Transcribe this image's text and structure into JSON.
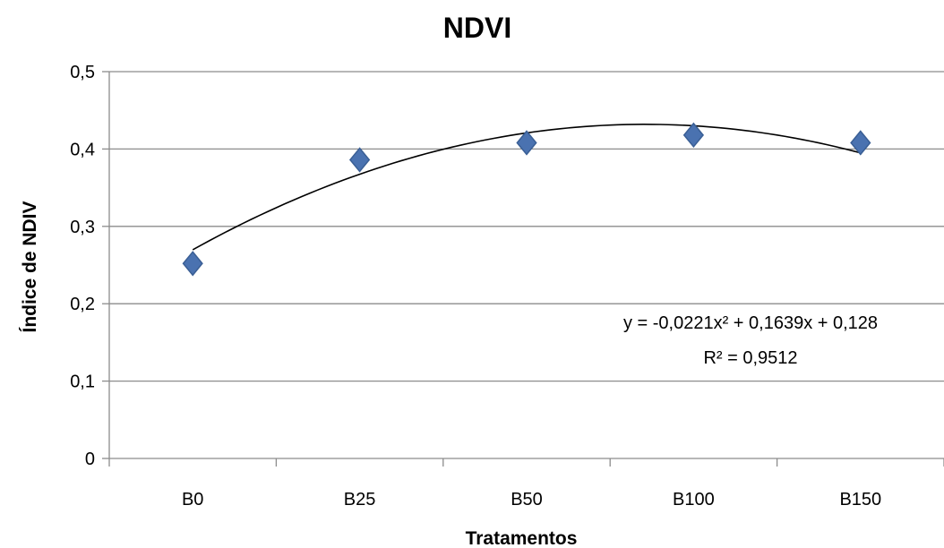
{
  "chart_data": {
    "type": "scatter",
    "title": "NDVI",
    "xlabel": "Tratamentos",
    "ylabel": "Índice de NDIV",
    "categories": [
      "B0",
      "B25",
      "B50",
      "B100",
      "B150"
    ],
    "series": [
      {
        "values": [
          0.252,
          0.386,
          0.408,
          0.418,
          0.408
        ],
        "marker": "diamond",
        "color": "#4A72B0"
      }
    ],
    "trendline": {
      "type": "polynomial",
      "order": 2,
      "coefficients": {
        "a": -0.0221,
        "b": 0.1639,
        "c": 0.128
      },
      "equation_label": "y = -0,0221x² + 0,1639x + 0,128",
      "r2_label": "R² = 0,9512",
      "color": "#000000"
    },
    "ylim": [
      0,
      0.5
    ],
    "yticks": [
      "0",
      "0,1",
      "0,2",
      "0,3",
      "0,4",
      "0,5"
    ],
    "grid": true,
    "legend": "none"
  }
}
